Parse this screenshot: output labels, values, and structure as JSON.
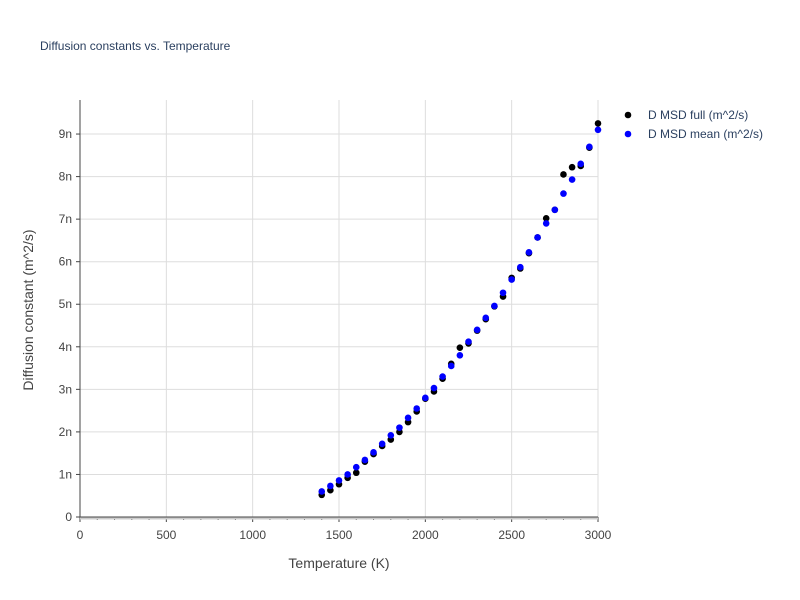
{
  "chart_data": {
    "type": "scatter",
    "title": "Diffusion constants vs. Temperature",
    "xlabel": "Temperature (K)",
    "ylabel": "Diffusion constant (m^2/s)",
    "xlim": [
      0,
      3000
    ],
    "ylim": [
      0,
      9.8
    ],
    "xticks": [
      0,
      500,
      1000,
      1500,
      2000,
      2500,
      3000
    ],
    "xtick_labels": [
      "0",
      "500",
      "1000",
      "1500",
      "2000",
      "2500",
      "3000"
    ],
    "yticks": [
      0,
      1,
      2,
      3,
      4,
      5,
      6,
      7,
      8,
      9
    ],
    "ytick_labels": [
      "0",
      "1n",
      "2n",
      "3n",
      "4n",
      "5n",
      "6n",
      "7n",
      "8n",
      "9n"
    ],
    "grid": true,
    "legend_position": "top-right-outside",
    "series": [
      {
        "name": "D MSD full (m^2/s)",
        "color": "#000000",
        "x": [
          1400,
          1450,
          1500,
          1550,
          1600,
          1650,
          1700,
          1750,
          1800,
          1850,
          1900,
          1950,
          2000,
          2050,
          2100,
          2150,
          2200,
          2250,
          2300,
          2350,
          2400,
          2450,
          2500,
          2550,
          2600,
          2650,
          2700,
          2750,
          2800,
          2850,
          2900,
          2950,
          3000
        ],
        "y": [
          0.52,
          0.63,
          0.77,
          0.92,
          1.04,
          1.3,
          1.48,
          1.67,
          1.82,
          2.0,
          2.23,
          2.48,
          2.78,
          2.95,
          3.25,
          3.6,
          3.98,
          4.08,
          4.38,
          4.65,
          4.95,
          5.18,
          5.62,
          5.84,
          6.2,
          6.57,
          7.02,
          7.22,
          8.05,
          8.22,
          8.25,
          8.68,
          9.25
        ]
      },
      {
        "name": "D MSD mean (m^2/s)",
        "color": "#0000ff",
        "x": [
          1400,
          1450,
          1500,
          1550,
          1600,
          1650,
          1700,
          1750,
          1800,
          1850,
          1900,
          1950,
          2000,
          2050,
          2100,
          2150,
          2200,
          2250,
          2300,
          2350,
          2400,
          2450,
          2500,
          2550,
          2600,
          2650,
          2700,
          2750,
          2800,
          2850,
          2900,
          2950,
          3000
        ],
        "y": [
          0.6,
          0.73,
          0.86,
          1.0,
          1.17,
          1.34,
          1.52,
          1.72,
          1.92,
          2.1,
          2.33,
          2.55,
          2.8,
          3.03,
          3.3,
          3.55,
          3.8,
          4.12,
          4.4,
          4.68,
          4.96,
          5.27,
          5.58,
          5.87,
          6.22,
          6.57,
          6.9,
          7.22,
          7.6,
          7.93,
          8.3,
          8.7,
          9.1
        ]
      }
    ]
  }
}
